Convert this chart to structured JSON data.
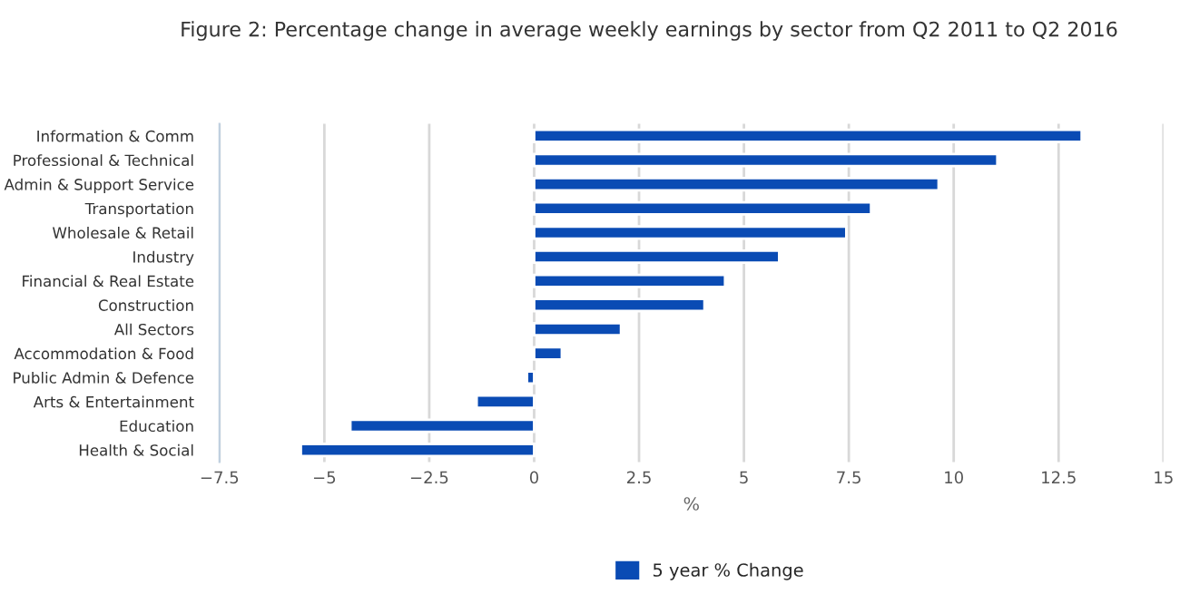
{
  "chart_data": {
    "type": "bar",
    "orientation": "horizontal",
    "title": "Figure 2: Percentage change in average weekly earnings by sector from Q2 2011 to Q2 2016",
    "xlabel": "%",
    "categories": [
      "Information & Comm",
      "Professional & Technical",
      "Admin & Support Service",
      "Transportation",
      "Wholesale & Retail",
      "Industry",
      "Financial & Real Estate",
      "Construction",
      "All Sectors",
      "Accommodation & Food",
      "Public Admin & Defence",
      "Arts & Entertainment",
      "Education",
      "Health & Social"
    ],
    "series": [
      {
        "name": "5 year % Change",
        "color": "#0a4bb4",
        "values": [
          13.05,
          11.04,
          9.64,
          8.03,
          7.44,
          5.84,
          4.55,
          4.06,
          2.07,
          0.66,
          -0.17,
          -1.37,
          -4.38,
          -5.56
        ]
      }
    ],
    "xlim": [
      -7.5,
      15
    ],
    "xticks": [
      {
        "value": -7.5,
        "label": "−7.5"
      },
      {
        "value": -5,
        "label": "−5"
      },
      {
        "value": -2.5,
        "label": "−2.5"
      },
      0,
      2.5,
      5,
      7.5,
      10,
      12.5,
      15
    ],
    "grid": "x",
    "legend": "bottom"
  }
}
